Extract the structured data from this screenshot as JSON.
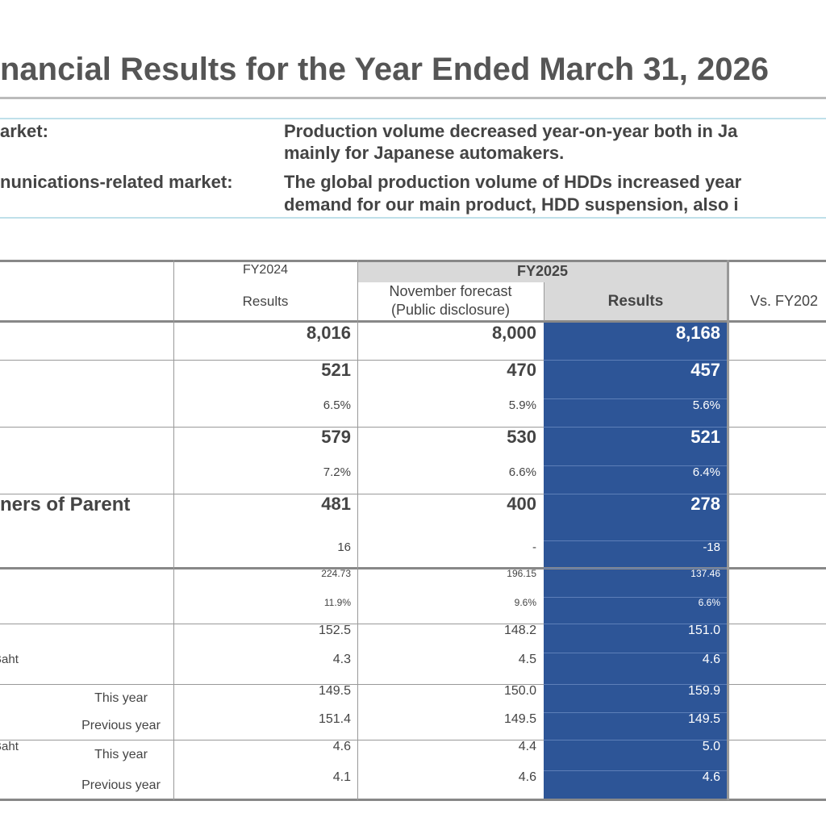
{
  "header": {
    "title": "nancial Results for the Year Ended March 31, 2026"
  },
  "market": {
    "rows": [
      {
        "label": "arket:",
        "text": [
          "Production volume decreased year-on-year both in Ja",
          "mainly for Japanese automakers."
        ]
      },
      {
        "label": "nunications-related market:",
        "text": [
          "The global production volume of HDDs increased year",
          "demand for our main product, HDD suspension, also i"
        ]
      }
    ]
  },
  "table": {
    "columns": {
      "fy2024": "FY2024",
      "fy2024_sub": "Results",
      "fy2025": "FY2025",
      "forecast": [
        "November forecast",
        "(Public disclosure)"
      ],
      "results": "Results",
      "vs": "Vs. FY202"
    },
    "rows": [
      {
        "fy2024": "8,016",
        "forecast": "8,000",
        "results": "8,168"
      },
      {
        "fy2024": "521",
        "forecast": "470",
        "results": "457"
      },
      {
        "fy2024": "6.5%",
        "forecast": "5.9%",
        "results": "5.6%"
      },
      {
        "fy2024": "579",
        "forecast": "530",
        "results": "521"
      },
      {
        "fy2024": "7.2%",
        "forecast": "6.6%",
        "results": "6.4%"
      },
      {
        "label": "ners of Parent",
        "fy2024": "481",
        "forecast": "400",
        "results": "278"
      },
      {
        "fy2024": "16",
        "forecast": "-",
        "results": "-18"
      },
      {
        "fy2024": "224.73",
        "forecast": "196.15",
        "results": "137.46"
      },
      {
        "fy2024": "11.9%",
        "forecast": "9.6%",
        "results": "6.6%"
      },
      {
        "fy2024": "152.5",
        "forecast": "148.2",
        "results": "151.0"
      },
      {
        "label": "Baht",
        "fy2024": "4.3",
        "forecast": "4.5",
        "results": "4.6"
      },
      {
        "sublabel": "This year",
        "fy2024": "149.5",
        "forecast": "150.0",
        "results": "159.9"
      },
      {
        "sublabel": "Previous year",
        "fy2024": "151.4",
        "forecast": "149.5",
        "results": "149.5"
      },
      {
        "label": "Baht",
        "sublabel": "This year",
        "fy2024": "4.6",
        "forecast": "4.4",
        "results": "5.0"
      },
      {
        "sublabel": "Previous year",
        "fy2024": "4.1",
        "forecast": "4.6",
        "results": "4.6"
      }
    ]
  }
}
